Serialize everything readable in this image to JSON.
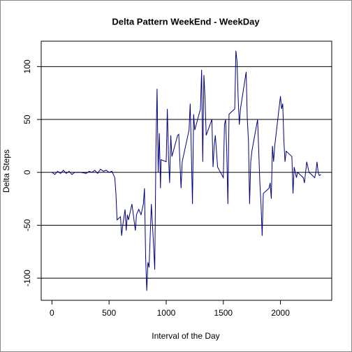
{
  "chart_data": {
    "type": "line",
    "title": "Delta Pattern WeekEnd - WeekDay",
    "xlabel": "Interval of the Day",
    "ylabel": "Delta Steps",
    "xlim": [
      -94,
      2449
    ],
    "ylim": [
      -121,
      124
    ],
    "xticks": [
      0,
      500,
      1000,
      1500,
      2000
    ],
    "yticks": [
      -100,
      -50,
      0,
      50,
      100
    ],
    "grid": true,
    "series": [
      {
        "color": "#000080",
        "x": [
          0,
          25,
          50,
          75,
          100,
          125,
          150,
          175,
          200,
          250,
          300,
          325,
          350,
          375,
          400,
          425,
          450,
          475,
          500,
          525,
          550,
          560,
          570,
          600,
          610,
          620,
          640,
          650,
          660,
          670,
          700,
          710,
          730,
          740,
          760,
          780,
          800,
          810,
          820,
          830,
          840,
          850,
          860,
          870,
          880,
          890,
          900,
          910,
          920,
          930,
          940,
          950,
          955,
          1000,
          1010,
          1020,
          1030,
          1040,
          1050,
          1100,
          1110,
          1120,
          1130,
          1140,
          1150,
          1200,
          1210,
          1220,
          1230,
          1240,
          1250,
          1300,
          1310,
          1320,
          1330,
          1340,
          1350,
          1400,
          1410,
          1420,
          1430,
          1440,
          1450,
          1500,
          1510,
          1520,
          1530,
          1540,
          1550,
          1600,
          1610,
          1620,
          1630,
          1640,
          1650,
          1700,
          1710,
          1720,
          1730,
          1740,
          1750,
          1800,
          1810,
          1820,
          1830,
          1840,
          1850,
          1900,
          1910,
          1920,
          1930,
          1940,
          1950,
          2000,
          2010,
          2020,
          2030,
          2040,
          2050,
          2100,
          2110,
          2120,
          2130,
          2140,
          2150,
          2200,
          2210,
          2220,
          2230,
          2240,
          2250,
          2300,
          2310,
          2320,
          2330,
          2340,
          2355
        ],
        "values": [
          0,
          -2,
          1,
          -1,
          2,
          -1,
          1,
          -2,
          0,
          0,
          -1,
          1,
          0,
          2,
          -1,
          3,
          1,
          2,
          0,
          1,
          -5,
          -20,
          -45,
          -42,
          -60,
          -50,
          -35,
          -55,
          -40,
          -45,
          -30,
          -38,
          -55,
          -40,
          -35,
          -40,
          -30,
          -15,
          -80,
          -112,
          -85,
          -90,
          -60,
          -30,
          -50,
          -70,
          -92,
          20,
          79,
          0,
          37,
          -15,
          12,
          10,
          60,
          15,
          -10,
          35,
          15,
          35,
          36,
          10,
          -15,
          10,
          15,
          40,
          65,
          20,
          -30,
          55,
          40,
          60,
          97,
          10,
          92,
          70,
          35,
          50,
          5,
          25,
          35,
          20,
          5,
          -5,
          45,
          50,
          20,
          -30,
          55,
          60,
          115,
          105,
          70,
          45,
          60,
          95,
          50,
          30,
          -30,
          10,
          20,
          50,
          20,
          -10,
          -30,
          -60,
          -20,
          -15,
          -10,
          -25,
          25,
          10,
          25,
          72,
          60,
          65,
          30,
          10,
          20,
          15,
          -20,
          5,
          0,
          -5,
          0,
          -5,
          -10,
          0,
          10,
          5,
          0,
          -5,
          0,
          10,
          0,
          -3,
          -2
        ]
      }
    ]
  }
}
